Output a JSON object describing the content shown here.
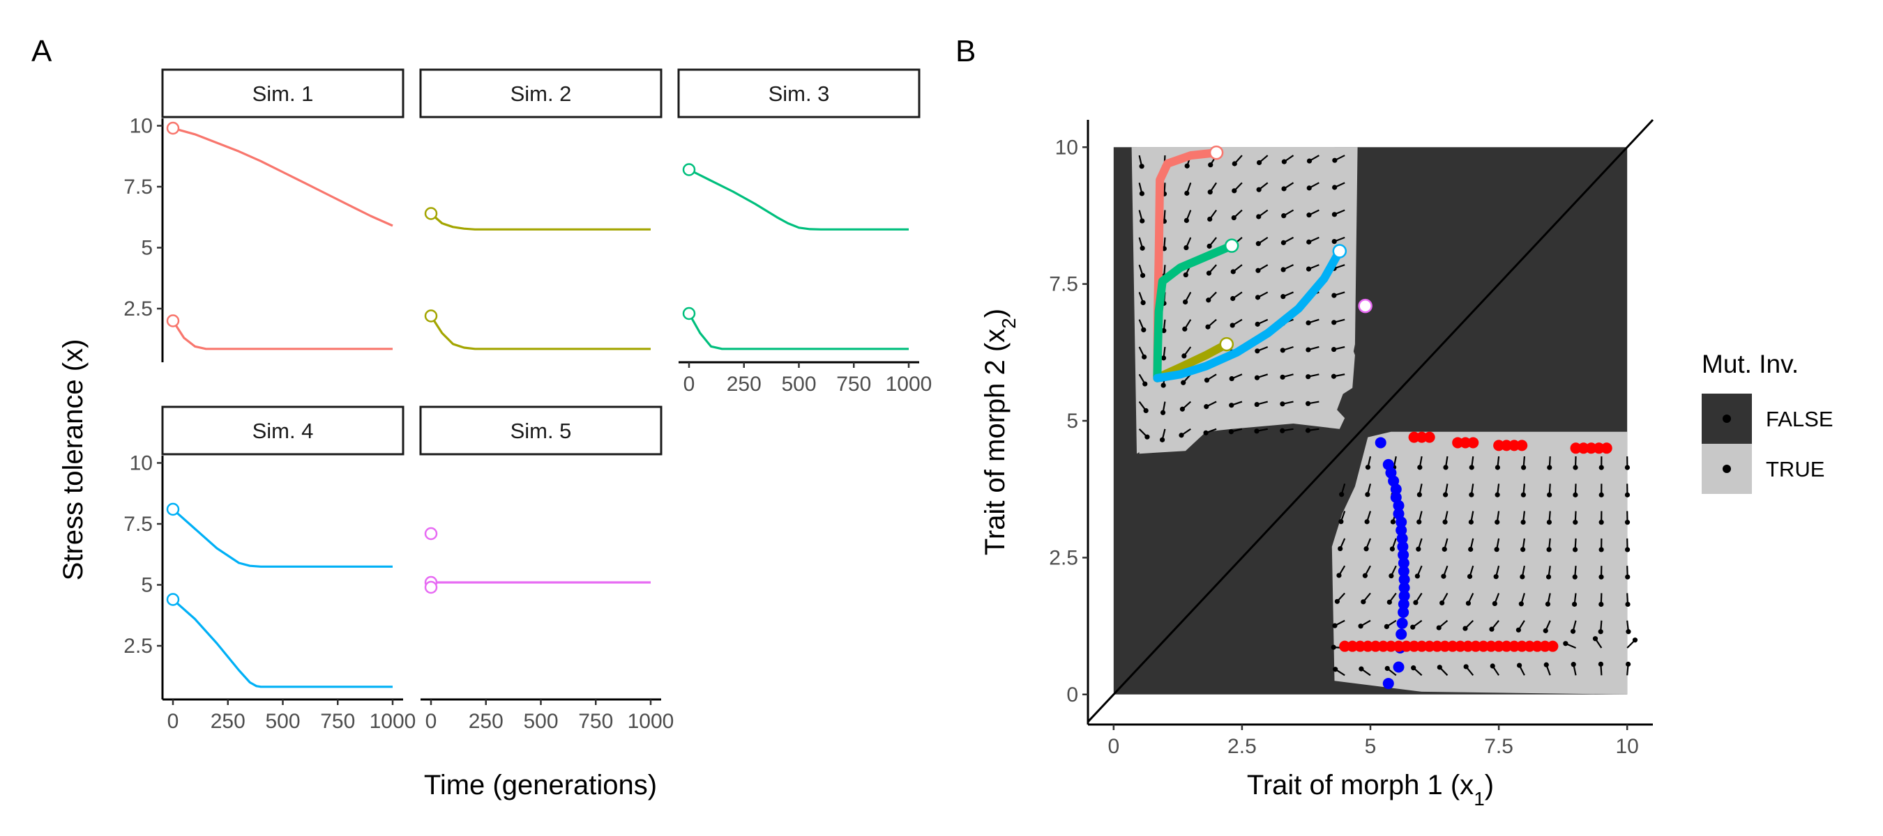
{
  "chart_data": [
    {
      "panel_label": "A",
      "type": "line",
      "xlabel": "Time (generations)",
      "ylabel": "Stress tolerance (x)",
      "xlim": [
        0,
        1000
      ],
      "ylim": [
        0.3,
        10.3
      ],
      "xticks": [
        0,
        250,
        500,
        750,
        1000
      ],
      "yticks": [
        2.5,
        5.0,
        7.5,
        10.0
      ],
      "grid": false,
      "facets": [
        {
          "label": "Sim. 1",
          "color": "#F8766D",
          "series": [
            {
              "x": [
                0,
                100,
                200,
                300,
                400,
                500,
                600,
                700,
                800,
                900,
                1000
              ],
              "y": [
                9.9,
                9.65,
                9.3,
                8.95,
                8.55,
                8.1,
                7.65,
                7.2,
                6.75,
                6.3,
                5.9
              ]
            },
            {
              "x": [
                0,
                50,
                100,
                150,
                200,
                400,
                600,
                800,
                1000
              ],
              "y": [
                2.0,
                1.3,
                0.95,
                0.85,
                0.85,
                0.85,
                0.85,
                0.85,
                0.85
              ]
            }
          ]
        },
        {
          "label": "Sim. 2",
          "color": "#A3A500",
          "series": [
            {
              "x": [
                0,
                50,
                100,
                150,
                200,
                400,
                600,
                800,
                1000
              ],
              "y": [
                6.4,
                6.0,
                5.85,
                5.78,
                5.75,
                5.75,
                5.75,
                5.75,
                5.75
              ]
            },
            {
              "x": [
                0,
                50,
                100,
                150,
                200,
                400,
                600,
                800,
                1000
              ],
              "y": [
                2.2,
                1.5,
                1.05,
                0.9,
                0.85,
                0.85,
                0.85,
                0.85,
                0.85
              ]
            }
          ]
        },
        {
          "label": "Sim. 3",
          "color": "#00BF7D",
          "series": [
            {
              "x": [
                0,
                100,
                200,
                300,
                400,
                450,
                500,
                550,
                600,
                800,
                1000
              ],
              "y": [
                8.2,
                7.75,
                7.3,
                6.8,
                6.25,
                6.0,
                5.82,
                5.76,
                5.75,
                5.75,
                5.75
              ]
            },
            {
              "x": [
                0,
                50,
                100,
                150,
                200,
                400,
                600,
                800,
                1000
              ],
              "y": [
                2.3,
                1.5,
                0.95,
                0.85,
                0.85,
                0.85,
                0.85,
                0.85,
                0.85
              ]
            }
          ]
        },
        {
          "label": "Sim. 4",
          "color": "#00B0F6",
          "series": [
            {
              "x": [
                0,
                100,
                200,
                300,
                350,
                400,
                500,
                600,
                800,
                1000
              ],
              "y": [
                8.1,
                7.3,
                6.5,
                5.9,
                5.78,
                5.75,
                5.75,
                5.75,
                5.75,
                5.75
              ]
            },
            {
              "x": [
                0,
                100,
                200,
                250,
                300,
                350,
                380,
                400,
                500,
                600,
                800,
                1000
              ],
              "y": [
                4.4,
                3.6,
                2.6,
                2.05,
                1.5,
                1.0,
                0.85,
                0.82,
                0.82,
                0.82,
                0.82,
                0.82
              ]
            }
          ]
        },
        {
          "label": "Sim. 5",
          "color": "#E76BF3",
          "series": [
            {
              "x": [
                0,
                1000
              ],
              "y": [
                5.1,
                5.1
              ]
            }
          ],
          "points": [
            {
              "x": 0,
              "y": 7.1
            },
            {
              "x": 0,
              "y": 4.9
            }
          ]
        }
      ]
    },
    {
      "panel_label": "B",
      "type": "scatter",
      "xlabel": "Trait of morph 1 (x",
      "xlabel_sub": "1",
      "ylabel": "Trait of morph 2 (x",
      "ylabel_sub": "2",
      "xlim": [
        -0.5,
        10.5
      ],
      "ylim": [
        -0.55,
        10.5
      ],
      "xticks": [
        0.0,
        2.5,
        5.0,
        7.5,
        10.0
      ],
      "yticks": [
        0.0,
        2.5,
        5.0,
        7.5,
        10.0
      ],
      "grid": false,
      "legend": {
        "title": "Mut. Inv.",
        "position": "right",
        "entries": [
          {
            "label": "FALSE",
            "color": "#333333"
          },
          {
            "label": "TRUE",
            "color": "#C8C8C8"
          }
        ]
      },
      "region_colors": {
        "false": "#333333",
        "true": "#C8C8C8"
      },
      "invasion_regions": [
        {
          "x": [
            0.0,
            0.35,
            0.45,
            1.4,
            3.9,
            4.65,
            4.7,
            4.5,
            4.3,
            3.3,
            2.0,
            1.0,
            0.5,
            0.35,
            0.2
          ],
          "y": [
            10.0,
            10.0,
            4.4,
            4.95,
            5.15,
            5.6,
            6.2,
            6.7,
            10.0,
            10.0,
            10.0,
            10.0,
            10.0,
            10.0,
            10.0
          ]
        },
        {
          "x": [
            0.45,
            4.75,
            4.7,
            4.55,
            4.35,
            4.5,
            4.4,
            3.5,
            2.3,
            1.8,
            1.4,
            0.5
          ],
          "y": [
            10.0,
            10.0,
            6.4,
            5.7,
            5.2,
            5.05,
            4.85,
            4.95,
            4.85,
            4.8,
            4.45,
            4.4
          ]
        },
        {
          "x": [
            5.4,
            10.0,
            10.0,
            6.0,
            4.3,
            4.25,
            4.45,
            4.7,
            4.95
          ],
          "y": [
            4.8,
            4.8,
            0.0,
            0.05,
            0.25,
            2.7,
            3.3,
            3.8,
            4.7
          ]
        }
      ],
      "arrow_field_color": "#000000",
      "trajectories": [
        {
          "color": "#F8766D",
          "x": [
            2.0,
            1.5,
            1.05,
            0.9,
            0.88,
            0.86,
            0.85
          ],
          "y": [
            9.9,
            9.85,
            9.7,
            9.4,
            8.0,
            7.0,
            5.8
          ]
        },
        {
          "color": "#A3A500",
          "x": [
            2.2,
            1.8,
            1.35,
            1.0,
            0.85
          ],
          "y": [
            6.4,
            6.2,
            6.0,
            5.85,
            5.78
          ]
        },
        {
          "color": "#00BF7D",
          "x": [
            2.3,
            1.8,
            1.3,
            0.95,
            0.88,
            0.86,
            0.85
          ],
          "y": [
            8.2,
            8.0,
            7.8,
            7.55,
            7.0,
            6.3,
            5.8
          ]
        },
        {
          "color": "#00B0F6",
          "x": [
            4.4,
            4.1,
            3.6,
            3.0,
            2.4,
            1.8,
            1.3,
            0.85
          ],
          "y": [
            8.1,
            7.6,
            7.05,
            6.6,
            6.25,
            6.0,
            5.85,
            5.78
          ]
        }
      ],
      "start_points": [
        {
          "color": "#F8766D",
          "x": 2.0,
          "y": 9.9
        },
        {
          "color": "#00BF7D",
          "x": 2.3,
          "y": 8.2
        },
        {
          "color": "#A3A500",
          "x": 2.2,
          "y": 6.4
        },
        {
          "color": "#00B0F6",
          "x": 4.4,
          "y": 8.1
        },
        {
          "color": "#E76BF3",
          "x": 4.9,
          "y": 7.1
        }
      ],
      "blue_points": {
        "color": "#0000FF",
        "x": [
          5.2,
          5.35,
          5.4,
          5.45,
          5.5,
          5.5,
          5.55,
          5.55,
          5.6,
          5.6,
          5.62,
          5.63,
          5.64,
          5.65,
          5.65,
          5.66,
          5.66,
          5.66,
          5.65,
          5.64,
          5.62,
          5.6,
          5.58,
          5.55,
          5.35
        ],
        "y": [
          4.6,
          4.2,
          4.05,
          3.9,
          3.75,
          3.6,
          3.45,
          3.3,
          3.15,
          3.0,
          2.85,
          2.7,
          2.55,
          2.4,
          2.25,
          2.1,
          1.95,
          1.8,
          1.65,
          1.5,
          1.3,
          1.1,
          0.85,
          0.5,
          0.2
        ]
      },
      "red_points": {
        "color": "#FF0000",
        "x": [
          4.5,
          4.65,
          4.8,
          4.95,
          5.1,
          5.25,
          5.4,
          5.55,
          5.7,
          5.85,
          6.0,
          6.15,
          6.3,
          6.45,
          6.6,
          6.75,
          6.9,
          7.05,
          7.2,
          7.35,
          7.5,
          7.65,
          7.8,
          7.95,
          8.1,
          8.25,
          8.4,
          8.55,
          5.85,
          6.0,
          6.15,
          6.7,
          6.85,
          7.0,
          7.5,
          7.65,
          7.8,
          7.95,
          9.0,
          9.15,
          9.3,
          9.45,
          9.6
        ],
        "y": [
          0.88,
          0.88,
          0.88,
          0.88,
          0.88,
          0.88,
          0.88,
          0.88,
          0.88,
          0.88,
          0.88,
          0.88,
          0.88,
          0.88,
          0.88,
          0.88,
          0.88,
          0.88,
          0.88,
          0.88,
          0.88,
          0.88,
          0.88,
          0.88,
          0.88,
          0.88,
          0.88,
          0.88,
          4.7,
          4.7,
          4.7,
          4.6,
          4.6,
          4.6,
          4.55,
          4.55,
          4.55,
          4.55,
          4.5,
          4.5,
          4.5,
          4.5,
          4.5
        ]
      }
    }
  ]
}
